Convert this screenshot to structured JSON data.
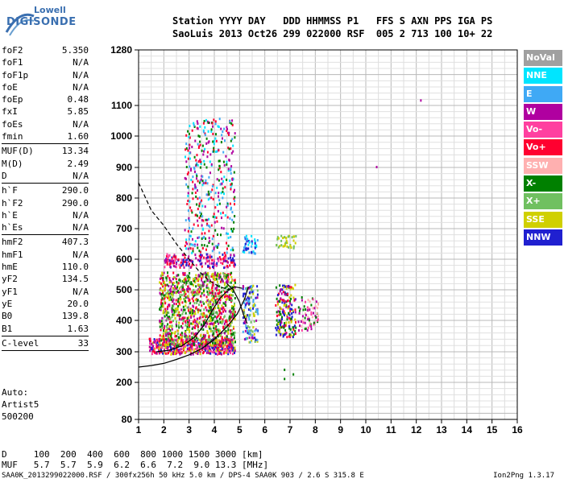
{
  "logo": {
    "line1": "Lowell",
    "line2": "DIGISONDE"
  },
  "header": {
    "line1": "Station YYYY DAY   DDD HHMMSS P1   FFS S AXN PPS IGA PS",
    "line2": "SaoLuis 2013 Oct26 299 022000 RSF  005 2 713 100 10+ 22"
  },
  "params": [
    {
      "k": "foF2",
      "v": "5.350"
    },
    {
      "k": "foF1",
      "v": "N/A"
    },
    {
      "k": "foF1p",
      "v": "N/A"
    },
    {
      "k": "foE",
      "v": "N/A"
    },
    {
      "k": "foEp",
      "v": "0.48"
    },
    {
      "k": "fxI",
      "v": "5.85"
    },
    {
      "k": "foEs",
      "v": "N/A"
    },
    {
      "k": "fmin",
      "v": "1.60"
    },
    {
      "k": "MUF(D)",
      "v": "13.34"
    },
    {
      "k": "M(D)",
      "v": "2.49"
    },
    {
      "k": "D",
      "v": "N/A"
    },
    {
      "k": "h`F",
      "v": "290.0"
    },
    {
      "k": "h`F2",
      "v": "290.0"
    },
    {
      "k": "h`E",
      "v": "N/A"
    },
    {
      "k": "h`Es",
      "v": "N/A"
    },
    {
      "k": "hmF2",
      "v": "407.3"
    },
    {
      "k": "hmF1",
      "v": "N/A"
    },
    {
      "k": "hmE",
      "v": "110.0"
    },
    {
      "k": "yF2",
      "v": "134.5"
    },
    {
      "k": "yF1",
      "v": "N/A"
    },
    {
      "k": "yE",
      "v": "20.0"
    },
    {
      "k": "B0",
      "v": "139.8"
    },
    {
      "k": "B1",
      "v": "1.63"
    },
    {
      "k": "C-level",
      "v": "33"
    }
  ],
  "auto": {
    "line1": "Auto:",
    "line2": "Artist5",
    "line3": "500200"
  },
  "bottom": {
    "d_row": "D     100  200  400  600  800 1000 1500 3000 [km]",
    "muf_row": "MUF   5.7  5.7  5.9  6.2  6.6  7.2  9.0 13.3 [MHz]"
  },
  "footer": {
    "left": "SAA0K_2013299022000.RSF / 300fx256h 50 kHz 5.0 km / DPS-4 SAA0K 903 / 2.6 S 315.8 E",
    "right": "Ion2Png 1.3.17"
  },
  "legend": [
    {
      "label": "NoVal",
      "color": "#a0a0a0"
    },
    {
      "label": "NNE",
      "color": "#00e5ff"
    },
    {
      "label": "E",
      "color": "#3fa9f5"
    },
    {
      "label": "W",
      "color": "#b000a0"
    },
    {
      "label": "Vo-",
      "color": "#ff40a0"
    },
    {
      "label": "Vo+",
      "color": "#ff0030"
    },
    {
      "label": "SSW",
      "color": "#ffb0b0"
    },
    {
      "label": "X-",
      "color": "#008000"
    },
    {
      "label": "X+",
      "color": "#70c060"
    },
    {
      "label": "SSE",
      "color": "#d0d000"
    },
    {
      "label": "NNW",
      "color": "#2020d0"
    }
  ],
  "chart_data": {
    "type": "scatter",
    "x_ticks": [
      1,
      2,
      3,
      4,
      5,
      6,
      7,
      8,
      9,
      10,
      11,
      12,
      13,
      14,
      15,
      16
    ],
    "y_ticks": [
      80,
      200,
      300,
      400,
      500,
      600,
      700,
      800,
      900,
      1000,
      1100,
      1280
    ],
    "xlim": [
      1,
      16
    ],
    "ylim": [
      80,
      1280
    ],
    "grid": true,
    "legend_position": "right",
    "traces": [
      {
        "style": "dashed",
        "points": [
          [
            1.0,
            850
          ],
          [
            1.5,
            760
          ],
          [
            2.0,
            710
          ],
          [
            2.5,
            650
          ],
          [
            3.0,
            600
          ],
          [
            3.4,
            560
          ],
          [
            3.8,
            530
          ],
          [
            4.2,
            510
          ],
          [
            4.6,
            500
          ]
        ]
      },
      {
        "style": "solid",
        "points": [
          [
            1.0,
            250
          ],
          [
            1.5,
            255
          ],
          [
            2.0,
            262
          ],
          [
            2.5,
            275
          ],
          [
            3.0,
            290
          ],
          [
            3.5,
            310
          ],
          [
            4.0,
            340
          ],
          [
            4.5,
            380
          ],
          [
            4.9,
            420
          ],
          [
            5.2,
            470
          ],
          [
            5.35,
            510
          ]
        ]
      },
      {
        "style": "solid",
        "points": [
          [
            1.7,
            300
          ],
          [
            2.2,
            305
          ],
          [
            2.7,
            318
          ],
          [
            3.2,
            345
          ],
          [
            3.6,
            385
          ],
          [
            3.9,
            430
          ],
          [
            4.2,
            470
          ],
          [
            4.5,
            495
          ],
          [
            4.8,
            510
          ],
          [
            5.1,
            505
          ]
        ]
      },
      {
        "style": "solid",
        "points": [
          [
            4.5,
            520
          ],
          [
            4.75,
            500
          ],
          [
            5.0,
            460
          ],
          [
            5.15,
            420
          ],
          [
            5.3,
            390
          ]
        ]
      }
    ],
    "clusters": [
      {
        "xr": [
          1.4,
          4.8
        ],
        "yr": [
          295,
          345
        ],
        "density": 2.2,
        "colors": [
          "#ff0030",
          "#b000a0",
          "#ff40a0",
          "#d0d000",
          "#2020d0"
        ]
      },
      {
        "xr": [
          1.8,
          4.8
        ],
        "yr": [
          320,
          560
        ],
        "density": 1.2,
        "colors": [
          "#ff0030",
          "#b000a0",
          "#d0d000",
          "#70c060",
          "#008000"
        ]
      },
      {
        "xr": [
          2.0,
          4.8
        ],
        "yr": [
          575,
          620
        ],
        "density": 1.1,
        "colors": [
          "#ff0030",
          "#b000a0",
          "#ff40a0",
          "#2020d0"
        ]
      },
      {
        "xr": [
          2.8,
          4.8
        ],
        "yr": [
          620,
          1060
        ],
        "density": 0.35,
        "colors": [
          "#ff0030",
          "#b000a0",
          "#00e5ff",
          "#3fa9f5",
          "#008000"
        ]
      },
      {
        "xr": [
          5.1,
          5.7
        ],
        "yr": [
          330,
          520
        ],
        "density": 0.9,
        "colors": [
          "#d0d000",
          "#3fa9f5",
          "#2020d0",
          "#b000a0",
          "#70c060"
        ]
      },
      {
        "xr": [
          5.1,
          5.7
        ],
        "yr": [
          620,
          680
        ],
        "density": 0.9,
        "colors": [
          "#3fa9f5",
          "#00e5ff",
          "#2020d0"
        ]
      },
      {
        "xr": [
          6.4,
          7.2
        ],
        "yr": [
          350,
          520
        ],
        "density": 1.0,
        "colors": [
          "#b000a0",
          "#d0d000",
          "#ff0030",
          "#2020d0",
          "#008000"
        ]
      },
      {
        "xr": [
          6.4,
          7.2
        ],
        "yr": [
          640,
          680
        ],
        "density": 0.9,
        "colors": [
          "#d0d000",
          "#70c060"
        ]
      },
      {
        "xr": [
          7.3,
          8.1
        ],
        "yr": [
          370,
          480
        ],
        "density": 0.6,
        "colors": [
          "#ff40a0",
          "#b000a0",
          "#ffb0b0",
          "#008000"
        ]
      }
    ],
    "isolated_points": [
      [
        10.4,
        905
      ],
      [
        12.15,
        1120
      ],
      [
        6.75,
        215
      ],
      [
        6.75,
        245
      ],
      [
        7.1,
        230
      ]
    ]
  }
}
